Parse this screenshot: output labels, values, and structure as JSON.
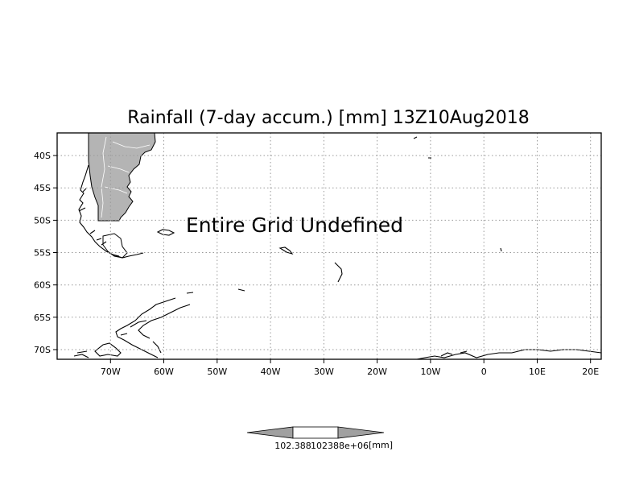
{
  "title": "Rainfall (7-day accum.) [mm] 13Z10Aug2018",
  "overlay_message": "Entire Grid Undefined",
  "map": {
    "lon_range": [
      -80,
      22
    ],
    "lat_range": [
      -71.5,
      -36.5
    ],
    "grid": "dotted",
    "land_fill_color": "#b4b4b4",
    "coastline_color": "#000000",
    "lon_ticks": [
      {
        "value": -70,
        "label": "70W"
      },
      {
        "value": -60,
        "label": "60W"
      },
      {
        "value": -50,
        "label": "50W"
      },
      {
        "value": -40,
        "label": "40W"
      },
      {
        "value": -30,
        "label": "30W"
      },
      {
        "value": -20,
        "label": "20W"
      },
      {
        "value": -10,
        "label": "10W"
      },
      {
        "value": 0,
        "label": "0"
      },
      {
        "value": 10,
        "label": "10E"
      },
      {
        "value": 20,
        "label": "20E"
      }
    ],
    "lat_ticks": [
      {
        "value": -40,
        "label": "40S"
      },
      {
        "value": -45,
        "label": "45S"
      },
      {
        "value": -50,
        "label": "50S"
      },
      {
        "value": -55,
        "label": "55S"
      },
      {
        "value": -60,
        "label": "60S"
      },
      {
        "value": -65,
        "label": "65S"
      },
      {
        "value": -70,
        "label": "70S"
      }
    ]
  },
  "colorbar": {
    "label_left": "102.388",
    "label_right": "102388e+06",
    "units": "[mm]",
    "fill_color": "#a0a0a0"
  }
}
